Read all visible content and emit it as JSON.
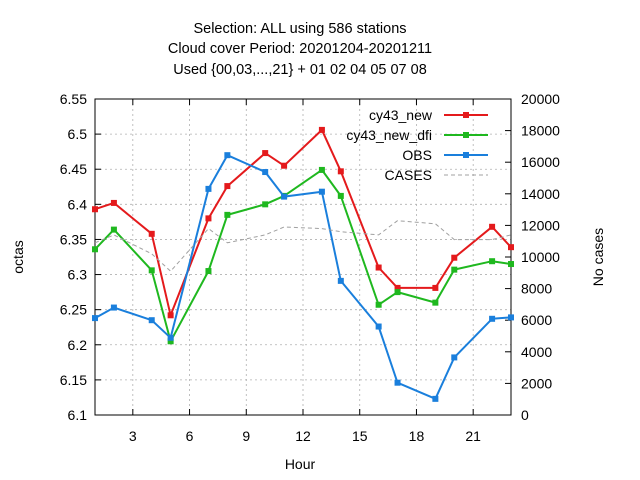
{
  "chart_data": {
    "type": "line",
    "title_lines": [
      "Selection: ALL using   586 stations",
      "Cloud cover   Period: 20201204-20201211",
      "Used {00,03,...,21} + 01 02 04 05 07 08"
    ],
    "xlabel": "Hour",
    "ylabel": "octas",
    "y2label": "No cases",
    "xlim": [
      1,
      23
    ],
    "ylim": [
      6.1,
      6.55
    ],
    "y2lim": [
      0,
      20000
    ],
    "xticks": [
      3,
      6,
      9,
      12,
      15,
      18,
      21
    ],
    "yticks": [
      "6.1",
      "6.15",
      "6.2",
      "6.25",
      "6.3",
      "6.35",
      "6.4",
      "6.45",
      "6.5",
      "6.55"
    ],
    "y2ticks": [
      "0",
      "2000",
      "4000",
      "6000",
      "8000",
      "10000",
      "12000",
      "14000",
      "16000",
      "18000",
      "20000"
    ],
    "grid": true,
    "legend_position": "top-right",
    "series": [
      {
        "name": "cy43_new",
        "color": "#e41a1c",
        "style": "solid-points",
        "axis": "left",
        "x": [
          1,
          2,
          4,
          5,
          7,
          8,
          10,
          11,
          13,
          14,
          16,
          17,
          19,
          20,
          22,
          23
        ],
        "values": [
          6.393,
          6.402,
          6.358,
          6.242,
          6.38,
          6.426,
          6.473,
          6.455,
          6.506,
          6.447,
          6.31,
          6.281,
          6.281,
          6.324,
          6.368,
          6.339
        ]
      },
      {
        "name": "cy43_new_dfi",
        "color": "#1fb81f",
        "style": "solid-points",
        "axis": "left",
        "x": [
          1,
          2,
          4,
          5,
          7,
          8,
          10,
          11,
          13,
          14,
          16,
          17,
          19,
          20,
          22,
          23
        ],
        "values": [
          6.336,
          6.364,
          6.306,
          6.205,
          6.305,
          6.385,
          6.4,
          6.412,
          6.449,
          6.412,
          6.257,
          6.275,
          6.26,
          6.307,
          6.319,
          6.315
        ]
      },
      {
        "name": "OBS",
        "color": "#1a7fdc",
        "style": "solid-points",
        "axis": "left",
        "x": [
          1,
          2,
          4,
          5,
          7,
          8,
          10,
          11,
          13,
          14,
          16,
          17,
          19,
          20,
          22,
          23
        ],
        "values": [
          6.238,
          6.253,
          6.235,
          6.21,
          6.422,
          6.47,
          6.446,
          6.411,
          6.418,
          6.291,
          6.226,
          6.146,
          6.123,
          6.182,
          6.237,
          6.239
        ]
      },
      {
        "name": "CASES",
        "color": "#a0a0a0",
        "style": "dashed",
        "axis": "right",
        "x": [
          1,
          2,
          4,
          5,
          7,
          8,
          10,
          11,
          13,
          14,
          16,
          17,
          19,
          20,
          22,
          23
        ],
        "values": [
          10900,
          11400,
          10200,
          9100,
          11800,
          10900,
          11400,
          11900,
          11800,
          11600,
          11400,
          12300,
          12100,
          11100,
          11100,
          11400
        ]
      }
    ]
  }
}
